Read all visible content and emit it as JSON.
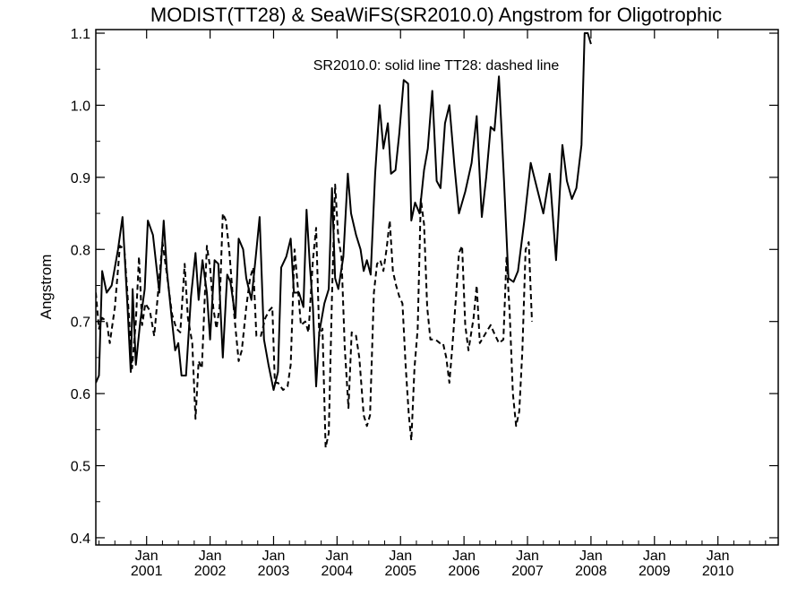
{
  "chart_data": {
    "type": "line",
    "title": "MODIST(TT28) & SeaWiFS(SR2010.0)  Angstrom for Oligotrophic",
    "annotation": "SR2010.0: solid line   TT28: dashed line",
    "ylabel": "Angstrom",
    "ylim": [
      0.39,
      1.105
    ],
    "yticks": [
      0.4,
      0.5,
      0.6,
      0.7,
      0.8,
      0.9,
      1.0,
      1.1
    ],
    "ytick_labels": [
      "0.4",
      "0.5",
      "0.6",
      "0.7",
      "0.8",
      "0.9",
      "1.0",
      "1.1"
    ],
    "xlim": [
      2000.2,
      2010.95
    ],
    "xtick_top": "Jan",
    "xticks": [
      {
        "year": "2001",
        "x": 2001
      },
      {
        "year": "2002",
        "x": 2002
      },
      {
        "year": "2003",
        "x": 2003
      },
      {
        "year": "2004",
        "x": 2004
      },
      {
        "year": "2005",
        "x": 2005
      },
      {
        "year": "2006",
        "x": 2006
      },
      {
        "year": "2007",
        "x": 2007
      },
      {
        "year": "2008",
        "x": 2008
      },
      {
        "year": "2009",
        "x": 2009
      },
      {
        "year": "2010",
        "x": 2010
      }
    ],
    "grid": false,
    "series": [
      {
        "name": "SR2010.0",
        "style": "solid",
        "color": "#000000",
        "points": [
          [
            2000.2,
            0.615
          ],
          [
            2000.25,
            0.625
          ],
          [
            2000.3,
            0.77
          ],
          [
            2000.37,
            0.74
          ],
          [
            2000.45,
            0.75
          ],
          [
            2000.55,
            0.8
          ],
          [
            2000.62,
            0.845
          ],
          [
            2000.7,
            0.72
          ],
          [
            2000.75,
            0.63
          ],
          [
            2000.78,
            0.745
          ],
          [
            2000.83,
            0.64
          ],
          [
            2000.9,
            0.7
          ],
          [
            2000.97,
            0.745
          ],
          [
            2001.02,
            0.84
          ],
          [
            2001.1,
            0.82
          ],
          [
            2001.2,
            0.74
          ],
          [
            2001.27,
            0.84
          ],
          [
            2001.32,
            0.77
          ],
          [
            2001.4,
            0.7
          ],
          [
            2001.45,
            0.66
          ],
          [
            2001.5,
            0.67
          ],
          [
            2001.55,
            0.625
          ],
          [
            2001.62,
            0.625
          ],
          [
            2001.7,
            0.735
          ],
          [
            2001.77,
            0.795
          ],
          [
            2001.82,
            0.73
          ],
          [
            2001.88,
            0.785
          ],
          [
            2001.95,
            0.74
          ],
          [
            2002.0,
            0.675
          ],
          [
            2002.07,
            0.785
          ],
          [
            2002.13,
            0.78
          ],
          [
            2002.2,
            0.65
          ],
          [
            2002.27,
            0.765
          ],
          [
            2002.32,
            0.755
          ],
          [
            2002.4,
            0.705
          ],
          [
            2002.45,
            0.815
          ],
          [
            2002.52,
            0.8
          ],
          [
            2002.57,
            0.76
          ],
          [
            2002.65,
            0.73
          ],
          [
            2002.72,
            0.79
          ],
          [
            2002.78,
            0.845
          ],
          [
            2002.85,
            0.675
          ],
          [
            2002.92,
            0.64
          ],
          [
            2003.0,
            0.605
          ],
          [
            2003.07,
            0.63
          ],
          [
            2003.12,
            0.775
          ],
          [
            2003.2,
            0.79
          ],
          [
            2003.27,
            0.815
          ],
          [
            2003.32,
            0.74
          ],
          [
            2003.4,
            0.74
          ],
          [
            2003.47,
            0.72
          ],
          [
            2003.52,
            0.855
          ],
          [
            2003.57,
            0.78
          ],
          [
            2003.62,
            0.72
          ],
          [
            2003.67,
            0.61
          ],
          [
            2003.72,
            0.685
          ],
          [
            2003.8,
            0.725
          ],
          [
            2003.87,
            0.745
          ],
          [
            2003.92,
            0.885
          ],
          [
            2003.97,
            0.76
          ],
          [
            2004.02,
            0.745
          ],
          [
            2004.1,
            0.79
          ],
          [
            2004.17,
            0.905
          ],
          [
            2004.22,
            0.85
          ],
          [
            2004.3,
            0.82
          ],
          [
            2004.37,
            0.8
          ],
          [
            2004.42,
            0.77
          ],
          [
            2004.47,
            0.785
          ],
          [
            2004.53,
            0.765
          ],
          [
            2004.6,
            0.905
          ],
          [
            2004.67,
            1.0
          ],
          [
            2004.73,
            0.94
          ],
          [
            2004.8,
            0.975
          ],
          [
            2004.85,
            0.905
          ],
          [
            2004.92,
            0.91
          ],
          [
            2004.98,
            0.96
          ],
          [
            2005.05,
            1.035
          ],
          [
            2005.12,
            1.03
          ],
          [
            2005.17,
            0.84
          ],
          [
            2005.23,
            0.865
          ],
          [
            2005.3,
            0.85
          ],
          [
            2005.37,
            0.91
          ],
          [
            2005.43,
            0.94
          ],
          [
            2005.5,
            1.02
          ],
          [
            2005.57,
            0.895
          ],
          [
            2005.63,
            0.885
          ],
          [
            2005.7,
            0.975
          ],
          [
            2005.77,
            1.0
          ],
          [
            2005.85,
            0.915
          ],
          [
            2005.92,
            0.85
          ],
          [
            2006.02,
            0.88
          ],
          [
            2006.12,
            0.92
          ],
          [
            2006.2,
            0.985
          ],
          [
            2006.28,
            0.845
          ],
          [
            2006.35,
            0.9
          ],
          [
            2006.42,
            0.97
          ],
          [
            2006.48,
            0.965
          ],
          [
            2006.55,
            1.04
          ],
          [
            2006.63,
            0.895
          ],
          [
            2006.7,
            0.76
          ],
          [
            2006.78,
            0.755
          ],
          [
            2006.85,
            0.77
          ],
          [
            2006.95,
            0.84
          ],
          [
            2007.05,
            0.92
          ],
          [
            2007.15,
            0.885
          ],
          [
            2007.25,
            0.85
          ],
          [
            2007.35,
            0.905
          ],
          [
            2007.45,
            0.785
          ],
          [
            2007.55,
            0.945
          ],
          [
            2007.62,
            0.895
          ],
          [
            2007.7,
            0.87
          ],
          [
            2007.77,
            0.885
          ],
          [
            2007.85,
            0.945
          ],
          [
            2007.9,
            1.1
          ],
          [
            2007.95,
            1.1
          ],
          [
            2008.0,
            1.085
          ]
        ]
      },
      {
        "name": "TT28",
        "style": "dashed",
        "color": "#000000",
        "points": [
          [
            2000.2,
            0.74
          ],
          [
            2000.25,
            0.69
          ],
          [
            2000.3,
            0.705
          ],
          [
            2000.37,
            0.7
          ],
          [
            2000.42,
            0.67
          ],
          [
            2000.5,
            0.72
          ],
          [
            2000.58,
            0.805
          ],
          [
            2000.65,
            0.8
          ],
          [
            2000.72,
            0.71
          ],
          [
            2000.77,
            0.635
          ],
          [
            2000.83,
            0.7
          ],
          [
            2000.88,
            0.79
          ],
          [
            2000.93,
            0.695
          ],
          [
            2000.98,
            0.725
          ],
          [
            2001.05,
            0.715
          ],
          [
            2001.12,
            0.68
          ],
          [
            2001.18,
            0.74
          ],
          [
            2001.25,
            0.81
          ],
          [
            2001.32,
            0.765
          ],
          [
            2001.4,
            0.71
          ],
          [
            2001.47,
            0.69
          ],
          [
            2001.53,
            0.685
          ],
          [
            2001.6,
            0.78
          ],
          [
            2001.65,
            0.705
          ],
          [
            2001.72,
            0.67
          ],
          [
            2001.77,
            0.565
          ],
          [
            2001.82,
            0.645
          ],
          [
            2001.87,
            0.635
          ],
          [
            2001.95,
            0.805
          ],
          [
            2002.0,
            0.775
          ],
          [
            2002.05,
            0.72
          ],
          [
            2002.1,
            0.69
          ],
          [
            2002.15,
            0.72
          ],
          [
            2002.2,
            0.85
          ],
          [
            2002.25,
            0.84
          ],
          [
            2002.3,
            0.8
          ],
          [
            2002.38,
            0.71
          ],
          [
            2002.45,
            0.645
          ],
          [
            2002.5,
            0.66
          ],
          [
            2002.57,
            0.72
          ],
          [
            2002.63,
            0.76
          ],
          [
            2002.68,
            0.775
          ],
          [
            2002.73,
            0.68
          ],
          [
            2002.8,
            0.68
          ],
          [
            2002.87,
            0.705
          ],
          [
            2002.93,
            0.715
          ],
          [
            2002.98,
            0.72
          ],
          [
            2003.02,
            0.615
          ],
          [
            2003.07,
            0.615
          ],
          [
            2003.15,
            0.605
          ],
          [
            2003.22,
            0.61
          ],
          [
            2003.27,
            0.64
          ],
          [
            2003.33,
            0.8
          ],
          [
            2003.38,
            0.75
          ],
          [
            2003.43,
            0.695
          ],
          [
            2003.5,
            0.7
          ],
          [
            2003.55,
            0.685
          ],
          [
            2003.62,
            0.785
          ],
          [
            2003.67,
            0.83
          ],
          [
            2003.72,
            0.68
          ],
          [
            2003.77,
            0.69
          ],
          [
            2003.82,
            0.525
          ],
          [
            2003.87,
            0.545
          ],
          [
            2003.92,
            0.735
          ],
          [
            2003.97,
            0.89
          ],
          [
            2004.02,
            0.815
          ],
          [
            2004.07,
            0.79
          ],
          [
            2004.12,
            0.665
          ],
          [
            2004.18,
            0.58
          ],
          [
            2004.23,
            0.685
          ],
          [
            2004.3,
            0.68
          ],
          [
            2004.35,
            0.65
          ],
          [
            2004.42,
            0.57
          ],
          [
            2004.47,
            0.555
          ],
          [
            2004.52,
            0.57
          ],
          [
            2004.58,
            0.74
          ],
          [
            2004.63,
            0.78
          ],
          [
            2004.68,
            0.785
          ],
          [
            2004.73,
            0.77
          ],
          [
            2004.78,
            0.8
          ],
          [
            2004.83,
            0.84
          ],
          [
            2004.88,
            0.77
          ],
          [
            2004.93,
            0.75
          ],
          [
            2004.98,
            0.735
          ],
          [
            2005.03,
            0.725
          ],
          [
            2005.08,
            0.64
          ],
          [
            2005.13,
            0.57
          ],
          [
            2005.17,
            0.535
          ],
          [
            2005.22,
            0.635
          ],
          [
            2005.27,
            0.69
          ],
          [
            2005.32,
            0.87
          ],
          [
            2005.37,
            0.835
          ],
          [
            2005.42,
            0.72
          ],
          [
            2005.47,
            0.675
          ],
          [
            2005.55,
            0.675
          ],
          [
            2005.62,
            0.67
          ],
          [
            2005.67,
            0.67
          ],
          [
            2005.72,
            0.65
          ],
          [
            2005.77,
            0.615
          ],
          [
            2005.82,
            0.67
          ],
          [
            2005.87,
            0.73
          ],
          [
            2005.92,
            0.795
          ],
          [
            2005.97,
            0.805
          ],
          [
            2006.02,
            0.695
          ],
          [
            2006.07,
            0.66
          ],
          [
            2006.15,
            0.705
          ],
          [
            2006.2,
            0.75
          ],
          [
            2006.25,
            0.67
          ],
          [
            2006.35,
            0.685
          ],
          [
            2006.42,
            0.695
          ],
          [
            2006.47,
            0.685
          ],
          [
            2006.55,
            0.67
          ],
          [
            2006.62,
            0.675
          ],
          [
            2006.67,
            0.79
          ],
          [
            2006.72,
            0.71
          ],
          [
            2006.77,
            0.6
          ],
          [
            2006.82,
            0.555
          ],
          [
            2006.87,
            0.575
          ],
          [
            2006.92,
            0.66
          ],
          [
            2006.97,
            0.8
          ],
          [
            2007.02,
            0.81
          ],
          [
            2007.07,
            0.7
          ]
        ]
      }
    ]
  }
}
